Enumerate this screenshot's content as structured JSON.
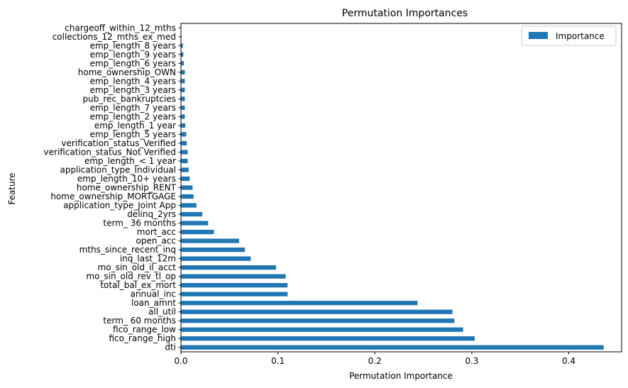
{
  "chart_data": {
    "type": "bar",
    "orientation": "horizontal",
    "title": "Permutation Importances",
    "xlabel": "Permutation Importance",
    "ylabel": "Feature",
    "xlim": [
      0,
      0.4545
    ],
    "xticks": [
      0.0,
      0.1,
      0.2,
      0.3,
      0.4
    ],
    "xtick_labels": [
      "0.0",
      "0.1",
      "0.2",
      "0.3",
      "0.4"
    ],
    "grid": false,
    "legend": {
      "position": "top-right",
      "entries": [
        "Importance"
      ]
    },
    "bar_color": "#1f77b4",
    "series": [
      {
        "name": "Importance",
        "categories": [
          "dti",
          "fico_range_high",
          "fico_range_low",
          "term_ 60 months",
          "all_util",
          "loan_amnt",
          "annual_inc",
          "total_bal_ex_mort",
          "mo_sin_old_rev_tl_op",
          "mo_sin_old_il_acct",
          "inq_last_12m",
          "mths_since_recent_inq",
          "open_acc",
          "mort_acc",
          "term_ 36 months",
          "delinq_2yrs",
          "application_type_Joint App",
          "home_ownership_MORTGAGE",
          "home_ownership_RENT",
          "emp_length_10+ years",
          "application_type_Individual",
          "emp_length_< 1 year",
          "verification_status_Not Verified",
          "verification_status_Verified",
          "emp_length_5 years",
          "emp_length_1 year",
          "emp_length_2 years",
          "emp_length_7 years",
          "pub_rec_bankruptcies",
          "emp_length_3 years",
          "emp_length_4 years",
          "home_ownership_OWN",
          "emp_length_6 years",
          "emp_length_9 years",
          "emp_length_8 years",
          "collections_12_mths_ex_med",
          "chargeoff_within_12_mths"
        ],
        "values": [
          0.436,
          0.303,
          0.291,
          0.282,
          0.28,
          0.244,
          0.11,
          0.11,
          0.108,
          0.098,
          0.072,
          0.066,
          0.06,
          0.034,
          0.028,
          0.022,
          0.016,
          0.013,
          0.012,
          0.009,
          0.008,
          0.007,
          0.007,
          0.006,
          0.0055,
          0.0045,
          0.004,
          0.004,
          0.004,
          0.004,
          0.004,
          0.004,
          0.003,
          0.0025,
          0.002,
          0.0005,
          0.0003
        ]
      }
    ]
  }
}
